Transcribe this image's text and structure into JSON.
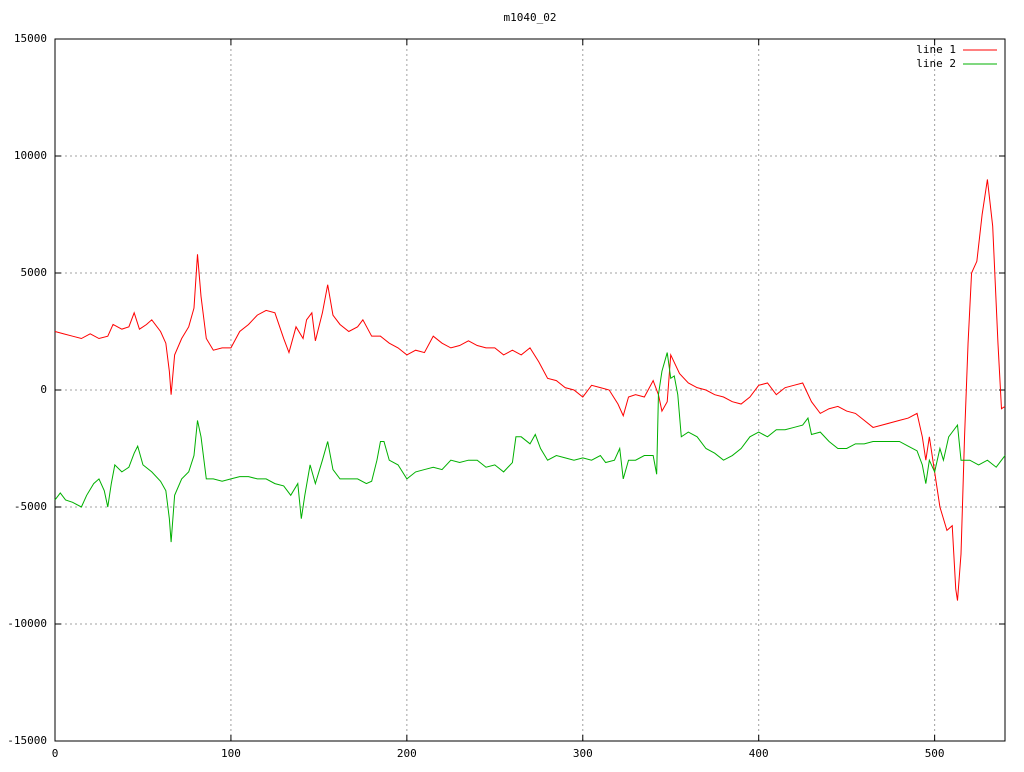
{
  "chart_data": {
    "type": "line",
    "title": "m1040_02",
    "xlim": [
      0,
      540
    ],
    "xticks": [
      0,
      100,
      200,
      300,
      400,
      500
    ],
    "ylim": [
      -15000,
      15000
    ],
    "yticks": [
      -15000,
      -10000,
      -5000,
      0,
      5000,
      10000,
      15000
    ],
    "grid": true,
    "legend": "top-right",
    "series": [
      {
        "name": "line 1",
        "color": "#ff0000",
        "x": [
          0,
          5,
          10,
          15,
          20,
          25,
          30,
          33,
          38,
          42,
          45,
          48,
          52,
          55,
          60,
          63,
          65,
          66,
          68,
          72,
          76,
          79,
          81,
          83,
          86,
          90,
          95,
          100,
          105,
          110,
          115,
          120,
          125,
          130,
          133,
          137,
          141,
          143,
          146,
          148,
          152,
          155,
          158,
          162,
          167,
          172,
          175,
          180,
          185,
          190,
          195,
          200,
          205,
          210,
          215,
          220,
          225,
          230,
          235,
          240,
          245,
          250,
          255,
          260,
          265,
          270,
          275,
          280,
          285,
          290,
          295,
          300,
          305,
          310,
          315,
          320,
          323,
          326,
          330,
          335,
          340,
          343,
          345,
          348,
          350,
          355,
          360,
          365,
          370,
          375,
          380,
          385,
          390,
          395,
          400,
          405,
          410,
          415,
          420,
          425,
          430,
          435,
          440,
          445,
          450,
          455,
          460,
          465,
          470,
          475,
          480,
          485,
          490,
          493,
          495,
          497,
          500,
          503,
          507,
          510,
          512,
          513,
          515,
          517,
          519,
          521,
          524,
          527,
          530,
          533,
          536,
          538,
          540
        ],
        "values": [
          2500,
          2400,
          2300,
          2200,
          2400,
          2200,
          2300,
          2800,
          2600,
          2700,
          3300,
          2600,
          2800,
          3000,
          2500,
          2000,
          800,
          -200,
          1500,
          2200,
          2700,
          3500,
          5800,
          4000,
          2200,
          1700,
          1800,
          1800,
          2500,
          2800,
          3200,
          3400,
          3300,
          2200,
          1600,
          2700,
          2200,
          3000,
          3300,
          2100,
          3300,
          4500,
          3200,
          2800,
          2500,
          2700,
          3000,
          2300,
          2300,
          2000,
          1800,
          1500,
          1700,
          1600,
          2300,
          2000,
          1800,
          1900,
          2100,
          1900,
          1800,
          1800,
          1500,
          1700,
          1500,
          1800,
          1200,
          500,
          400,
          100,
          0,
          -300,
          200,
          100,
          0,
          -600,
          -1100,
          -300,
          -200,
          -300,
          400,
          -200,
          -900,
          -500,
          1500,
          700,
          300,
          100,
          0,
          -200,
          -300,
          -500,
          -600,
          -300,
          200,
          300,
          -200,
          100,
          200,
          300,
          -500,
          -1000,
          -800,
          -700,
          -900,
          -1000,
          -1300,
          -1600,
          -1500,
          -1400,
          -1300,
          -1200,
          -1000,
          -2000,
          -3000,
          -2000,
          -3500,
          -5000,
          -6000,
          -5800,
          -8500,
          -9000,
          -7000,
          -2000,
          2000,
          5000,
          5500,
          7500,
          9000,
          7000,
          2000,
          -800,
          -700
        ]
      },
      {
        "name": "line 2",
        "color": "#00b000",
        "x": [
          0,
          3,
          6,
          10,
          15,
          18,
          22,
          25,
          28,
          30,
          32,
          34,
          38,
          42,
          45,
          47,
          50,
          55,
          60,
          63,
          65,
          66,
          68,
          72,
          76,
          79,
          81,
          83,
          86,
          90,
          95,
          100,
          105,
          110,
          115,
          120,
          125,
          130,
          134,
          138,
          140,
          142,
          145,
          148,
          152,
          155,
          158,
          162,
          167,
          172,
          177,
          180,
          183,
          185,
          187,
          190,
          195,
          200,
          205,
          210,
          215,
          220,
          225,
          230,
          235,
          240,
          245,
          250,
          255,
          260,
          262,
          265,
          270,
          273,
          276,
          280,
          285,
          290,
          295,
          300,
          305,
          310,
          313,
          318,
          321,
          323,
          326,
          330,
          335,
          340,
          342,
          343,
          345,
          348,
          350,
          352,
          354,
          356,
          360,
          365,
          370,
          375,
          380,
          385,
          390,
          395,
          400,
          405,
          410,
          415,
          420,
          425,
          428,
          430,
          435,
          440,
          445,
          450,
          455,
          460,
          465,
          470,
          475,
          480,
          485,
          490,
          493,
          495,
          497,
          500,
          503,
          505,
          508,
          510,
          513,
          515,
          520,
          525,
          530,
          535,
          538,
          540
        ],
        "values": [
          -4700,
          -4400,
          -4700,
          -4800,
          -5000,
          -4500,
          -4000,
          -3800,
          -4300,
          -5000,
          -4000,
          -3200,
          -3500,
          -3300,
          -2700,
          -2400,
          -3200,
          -3500,
          -3900,
          -4300,
          -5500,
          -6500,
          -4500,
          -3800,
          -3500,
          -2800,
          -1300,
          -2000,
          -3800,
          -3800,
          -3900,
          -3800,
          -3700,
          -3700,
          -3800,
          -3800,
          -4000,
          -4100,
          -4500,
          -4000,
          -5500,
          -4500,
          -3200,
          -4000,
          -3000,
          -2200,
          -3400,
          -3800,
          -3800,
          -3800,
          -4000,
          -3900,
          -3000,
          -2200,
          -2200,
          -3000,
          -3200,
          -3800,
          -3500,
          -3400,
          -3300,
          -3400,
          -3000,
          -3100,
          -3000,
          -3000,
          -3300,
          -3200,
          -3500,
          -3100,
          -2000,
          -2000,
          -2300,
          -1900,
          -2500,
          -3000,
          -2800,
          -2900,
          -3000,
          -2900,
          -3000,
          -2800,
          -3100,
          -3000,
          -2500,
          -3800,
          -3000,
          -3000,
          -2800,
          -2800,
          -3600,
          -200,
          800,
          1600,
          500,
          600,
          -200,
          -2000,
          -1800,
          -2000,
          -2500,
          -2700,
          -3000,
          -2800,
          -2500,
          -2000,
          -1800,
          -2000,
          -1700,
          -1700,
          -1600,
          -1500,
          -1200,
          -1900,
          -1800,
          -2200,
          -2500,
          -2500,
          -2300,
          -2300,
          -2200,
          -2200,
          -2200,
          -2200,
          -2400,
          -2600,
          -3200,
          -4000,
          -3000,
          -3500,
          -2500,
          -3000,
          -2000,
          -1800,
          -1500,
          -3000,
          -3000,
          -3200,
          -3000,
          -3300,
          -3000,
          -2800
        ]
      }
    ]
  }
}
